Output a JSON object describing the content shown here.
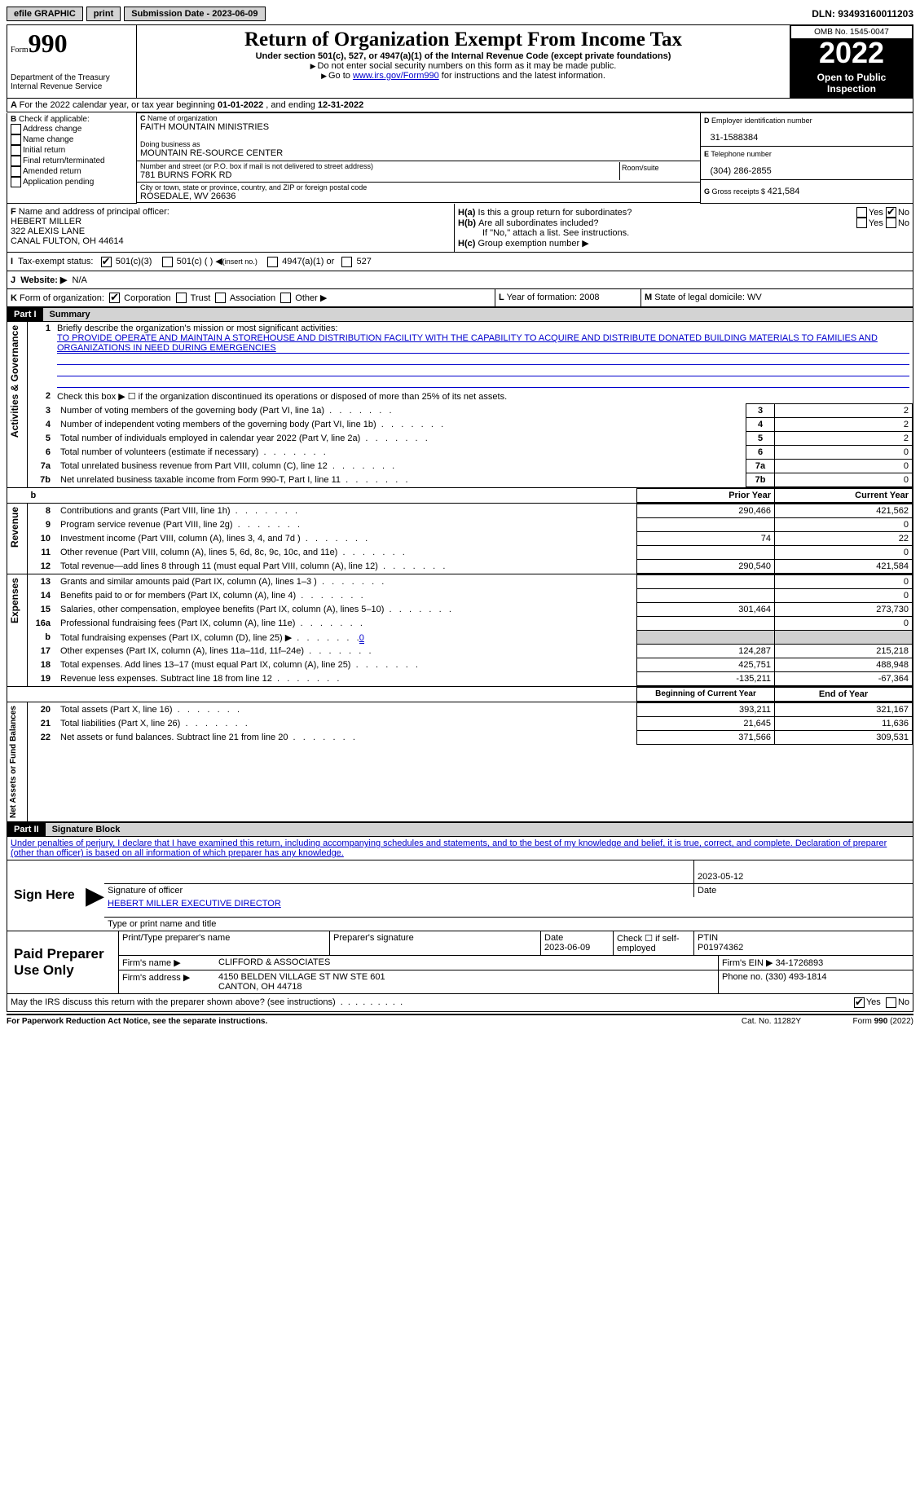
{
  "topbar": {
    "efile": "efile GRAPHIC",
    "print": "print",
    "submission": "Submission Date - 2023-06-09",
    "dln": "DLN: 93493160011203"
  },
  "header": {
    "form": "Form",
    "form_no": "990",
    "title": "Return of Organization Exempt From Income Tax",
    "subtitle": "Under section 501(c), 527, or 4947(a)(1) of the Internal Revenue Code (except private foundations)",
    "warn1": "Do not enter social security numbers on this form as it may be made public.",
    "warn2_pre": "Go to ",
    "warn2_link": "www.irs.gov/Form990",
    "warn2_post": " for instructions and the latest information.",
    "dept": "Department of the Treasury",
    "irs": "Internal Revenue Service",
    "omb": "OMB No. 1545-0047",
    "year": "2022",
    "open": "Open to Public Inspection"
  },
  "A": {
    "text": "For the 2022 calendar year, or tax year beginning ",
    "begin": "01-01-2022",
    "mid": " , and ending ",
    "end": "12-31-2022"
  },
  "B": {
    "label": "Check if applicable:",
    "opts": [
      "Address change",
      "Name change",
      "Initial return",
      "Final return/terminated",
      "Amended return",
      "Application pending"
    ]
  },
  "C": {
    "name_lbl": "Name of organization",
    "name": "FAITH MOUNTAIN MINISTRIES",
    "dba_lbl": "Doing business as",
    "dba": "MOUNTAIN RE-SOURCE CENTER",
    "street_lbl": "Number and street (or P.O. box if mail is not delivered to street address)",
    "room_lbl": "Room/suite",
    "street": "781 BURNS FORK RD",
    "city_lbl": "City or town, state or province, country, and ZIP or foreign postal code",
    "city": "ROSEDALE, WV  26636"
  },
  "D": {
    "lbl": "Employer identification number",
    "val": "31-1588384"
  },
  "E": {
    "lbl": "Telephone number",
    "val": "(304) 286-2855"
  },
  "G": {
    "lbl": "Gross receipts $",
    "val": "421,584"
  },
  "F": {
    "lbl": "Name and address of principal officer:",
    "name": "HEBERT MILLER",
    "addr1": "322 ALEXIS LANE",
    "addr2": "CANAL FULTON, OH  44614"
  },
  "H": {
    "a": "Is this a group return for subordinates?",
    "b": "Are all subordinates included?",
    "no_note": "If \"No,\" attach a list. See instructions.",
    "c": "Group exemption number",
    "yes": "Yes",
    "no": "No"
  },
  "I": {
    "lbl": "Tax-exempt status:",
    "o1": "501(c)(3)",
    "o2": "501(c) (  )",
    "o2b": "(insert no.)",
    "o3": "4947(a)(1) or",
    "o4": "527"
  },
  "J": {
    "lbl": "Website:",
    "val": "N/A"
  },
  "K": {
    "lbl": "Form of organization:",
    "o1": "Corporation",
    "o2": "Trust",
    "o3": "Association",
    "o4": "Other"
  },
  "L": {
    "lbl": "Year of formation:",
    "val": "2008"
  },
  "M": {
    "lbl": "State of legal domicile:",
    "val": "WV"
  },
  "partI": {
    "hdr": "Part I",
    "title": "Summary"
  },
  "gov": {
    "label": "Activities & Governance",
    "l1": "Briefly describe the organization's mission or most significant activities:",
    "l1v": "TO PROVIDE OPERATE AND MAINTAIN A STOREHOUSE AND DISTRIBUTION FACILITY WITH THE CAPABILITY TO ACQUIRE AND DISTRIBUTE DONATED BUILDING MATERIALS TO FAMILIES AND ORGANIZATIONS IN NEED DURING EMERGENCIES",
    "l2": "Check this box ▶ ☐  if the organization discontinued its operations or disposed of more than 25% of its net assets.",
    "rows": [
      {
        "n": "3",
        "t": "Number of voting members of the governing body (Part VI, line 1a)",
        "v": "2"
      },
      {
        "n": "4",
        "t": "Number of independent voting members of the governing body (Part VI, line 1b)",
        "v": "2"
      },
      {
        "n": "5",
        "t": "Total number of individuals employed in calendar year 2022 (Part V, line 2a)",
        "v": "2"
      },
      {
        "n": "6",
        "t": "Total number of volunteers (estimate if necessary)",
        "v": "0"
      },
      {
        "n": "7a",
        "t": "Total unrelated business revenue from Part VIII, column (C), line 12",
        "v": "0"
      },
      {
        "n": "7b",
        "t": "Net unrelated business taxable income from Form 990-T, Part I, line 11",
        "v": "0"
      }
    ]
  },
  "cols": {
    "py": "Prior Year",
    "cy": "Current Year",
    "boy": "Beginning of Current Year",
    "eoy": "End of Year"
  },
  "rev": {
    "label": "Revenue",
    "rows": [
      {
        "n": "8",
        "t": "Contributions and grants (Part VIII, line 1h)",
        "py": "290,466",
        "cy": "421,562"
      },
      {
        "n": "9",
        "t": "Program service revenue (Part VIII, line 2g)",
        "py": "",
        "cy": "0"
      },
      {
        "n": "10",
        "t": "Investment income (Part VIII, column (A), lines 3, 4, and 7d )",
        "py": "74",
        "cy": "22"
      },
      {
        "n": "11",
        "t": "Other revenue (Part VIII, column (A), lines 5, 6d, 8c, 9c, 10c, and 11e)",
        "py": "",
        "cy": "0"
      },
      {
        "n": "12",
        "t": "Total revenue—add lines 8 through 11 (must equal Part VIII, column (A), line 12)",
        "py": "290,540",
        "cy": "421,584"
      }
    ]
  },
  "exp": {
    "label": "Expenses",
    "rows": [
      {
        "n": "13",
        "t": "Grants and similar amounts paid (Part IX, column (A), lines 1–3 )",
        "py": "",
        "cy": "0"
      },
      {
        "n": "14",
        "t": "Benefits paid to or for members (Part IX, column (A), line 4)",
        "py": "",
        "cy": "0"
      },
      {
        "n": "15",
        "t": "Salaries, other compensation, employee benefits (Part IX, column (A), lines 5–10)",
        "py": "301,464",
        "cy": "273,730"
      },
      {
        "n": "16a",
        "t": "Professional fundraising fees (Part IX, column (A), line 11e)",
        "py": "",
        "cy": "0"
      },
      {
        "n": "b",
        "t": "Total fundraising expenses (Part IX, column (D), line 25) ▶",
        "extra": "0",
        "py": "GRAY",
        "cy": "GRAY"
      },
      {
        "n": "17",
        "t": "Other expenses (Part IX, column (A), lines 11a–11d, 11f–24e)",
        "py": "124,287",
        "cy": "215,218"
      },
      {
        "n": "18",
        "t": "Total expenses. Add lines 13–17 (must equal Part IX, column (A), line 25)",
        "py": "425,751",
        "cy": "488,948"
      },
      {
        "n": "19",
        "t": "Revenue less expenses. Subtract line 18 from line 12",
        "py": "-135,211",
        "cy": "-67,364"
      }
    ]
  },
  "net": {
    "label": "Net Assets or Fund Balances",
    "rows": [
      {
        "n": "20",
        "t": "Total assets (Part X, line 16)",
        "py": "393,211",
        "cy": "321,167"
      },
      {
        "n": "21",
        "t": "Total liabilities (Part X, line 26)",
        "py": "21,645",
        "cy": "11,636"
      },
      {
        "n": "22",
        "t": "Net assets or fund balances. Subtract line 21 from line 20",
        "py": "371,566",
        "cy": "309,531"
      }
    ]
  },
  "partII": {
    "hdr": "Part II",
    "title": "Signature Block"
  },
  "sig": {
    "decl": "Under penalties of perjury, I declare that I have examined this return, including accompanying schedules and statements, and to the best of my knowledge and belief, it is true, correct, and complete. Declaration of preparer (other than officer) is based on all information of which preparer has any knowledge.",
    "sign_here": "Sign Here",
    "sig_officer": "Signature of officer",
    "date": "Date",
    "date_v": "2023-05-12",
    "name": "HEBERT MILLER  EXECUTIVE DIRECTOR",
    "name_lbl": "Type or print name and title"
  },
  "prep": {
    "label": "Paid Preparer Use Only",
    "c1": "Print/Type preparer's name",
    "c2": "Preparer's signature",
    "c3": "Date",
    "c3v": "2023-06-09",
    "c4": "Check ☐ if self-employed",
    "c5": "PTIN",
    "c5v": "P01974362",
    "firm_lbl": "Firm's name    ▶",
    "firm": "CLIFFORD & ASSOCIATES",
    "ein_lbl": "Firm's EIN ▶",
    "ein": "34-1726893",
    "addr_lbl": "Firm's address ▶",
    "addr1": "4150 BELDEN VILLAGE ST NW STE 601",
    "addr2": "CANTON, OH  44718",
    "phone_lbl": "Phone no.",
    "phone": "(330) 493-1814"
  },
  "bottom": {
    "q": "May the IRS discuss this return with the preparer shown above? (see instructions)",
    "yes": "Yes",
    "no": "No",
    "pra": "For Paperwork Reduction Act Notice, see the separate instructions.",
    "cat": "Cat. No. 11282Y",
    "form": "Form 990 (2022)"
  }
}
